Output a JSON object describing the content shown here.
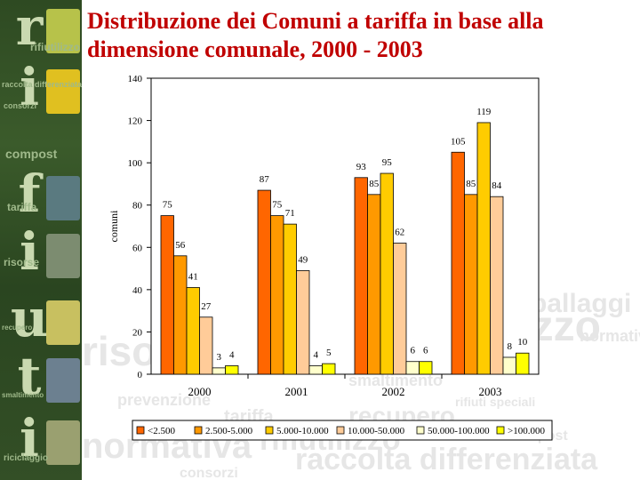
{
  "title": "Distribuzione dei Comuni a tariffa in base alla dimensione comunale, 2000 - 2003",
  "sidebar": {
    "letters": [
      "r",
      "i",
      "f",
      "i",
      "u",
      "t",
      "i"
    ],
    "words": [
      "rifiutilizzo",
      "raccolta differenziata",
      "consorzi",
      "compost",
      "tariffa",
      "risorse",
      "recupero",
      "smaltimento",
      "riciclaggio"
    ]
  },
  "background_words": [
    "imballaggi",
    "rifiutilizzo",
    "normativa",
    "risorse",
    "smaltimento",
    "rifiuti speciali",
    "prevenzione",
    "tariffa",
    "recupero",
    "compost",
    "normativa",
    "rifiutilizzo",
    "raccolta differenziata",
    "consorzi"
  ],
  "colors": {
    "title": "#c00000",
    "series": [
      "#ff6600",
      "#ff9900",
      "#ffcc00",
      "#ffcc99",
      "#ffffcc",
      "#ffff00"
    ]
  },
  "chart_data": {
    "type": "bar",
    "title": "",
    "xlabel": "",
    "ylabel": "comuni",
    "categories": [
      "2000",
      "2001",
      "2002",
      "2003"
    ],
    "ylim": [
      0,
      140
    ],
    "yticks": [
      0,
      20,
      40,
      60,
      80,
      100,
      120,
      140
    ],
    "grid": false,
    "legend_position": "bottom",
    "series": [
      {
        "name": "<2.500",
        "values": [
          75,
          87,
          93,
          105
        ]
      },
      {
        "name": "2.500-5.000",
        "values": [
          56,
          75,
          85,
          85
        ]
      },
      {
        "name": "5.000-10.000",
        "values": [
          41,
          71,
          95,
          119
        ]
      },
      {
        "name": "10.000-50.000",
        "values": [
          27,
          49,
          62,
          84
        ]
      },
      {
        "name": "50.000-100.000",
        "values": [
          3,
          4,
          6,
          8
        ]
      },
      {
        "name": ">100.000",
        "values": [
          4,
          5,
          6,
          10
        ]
      }
    ]
  }
}
